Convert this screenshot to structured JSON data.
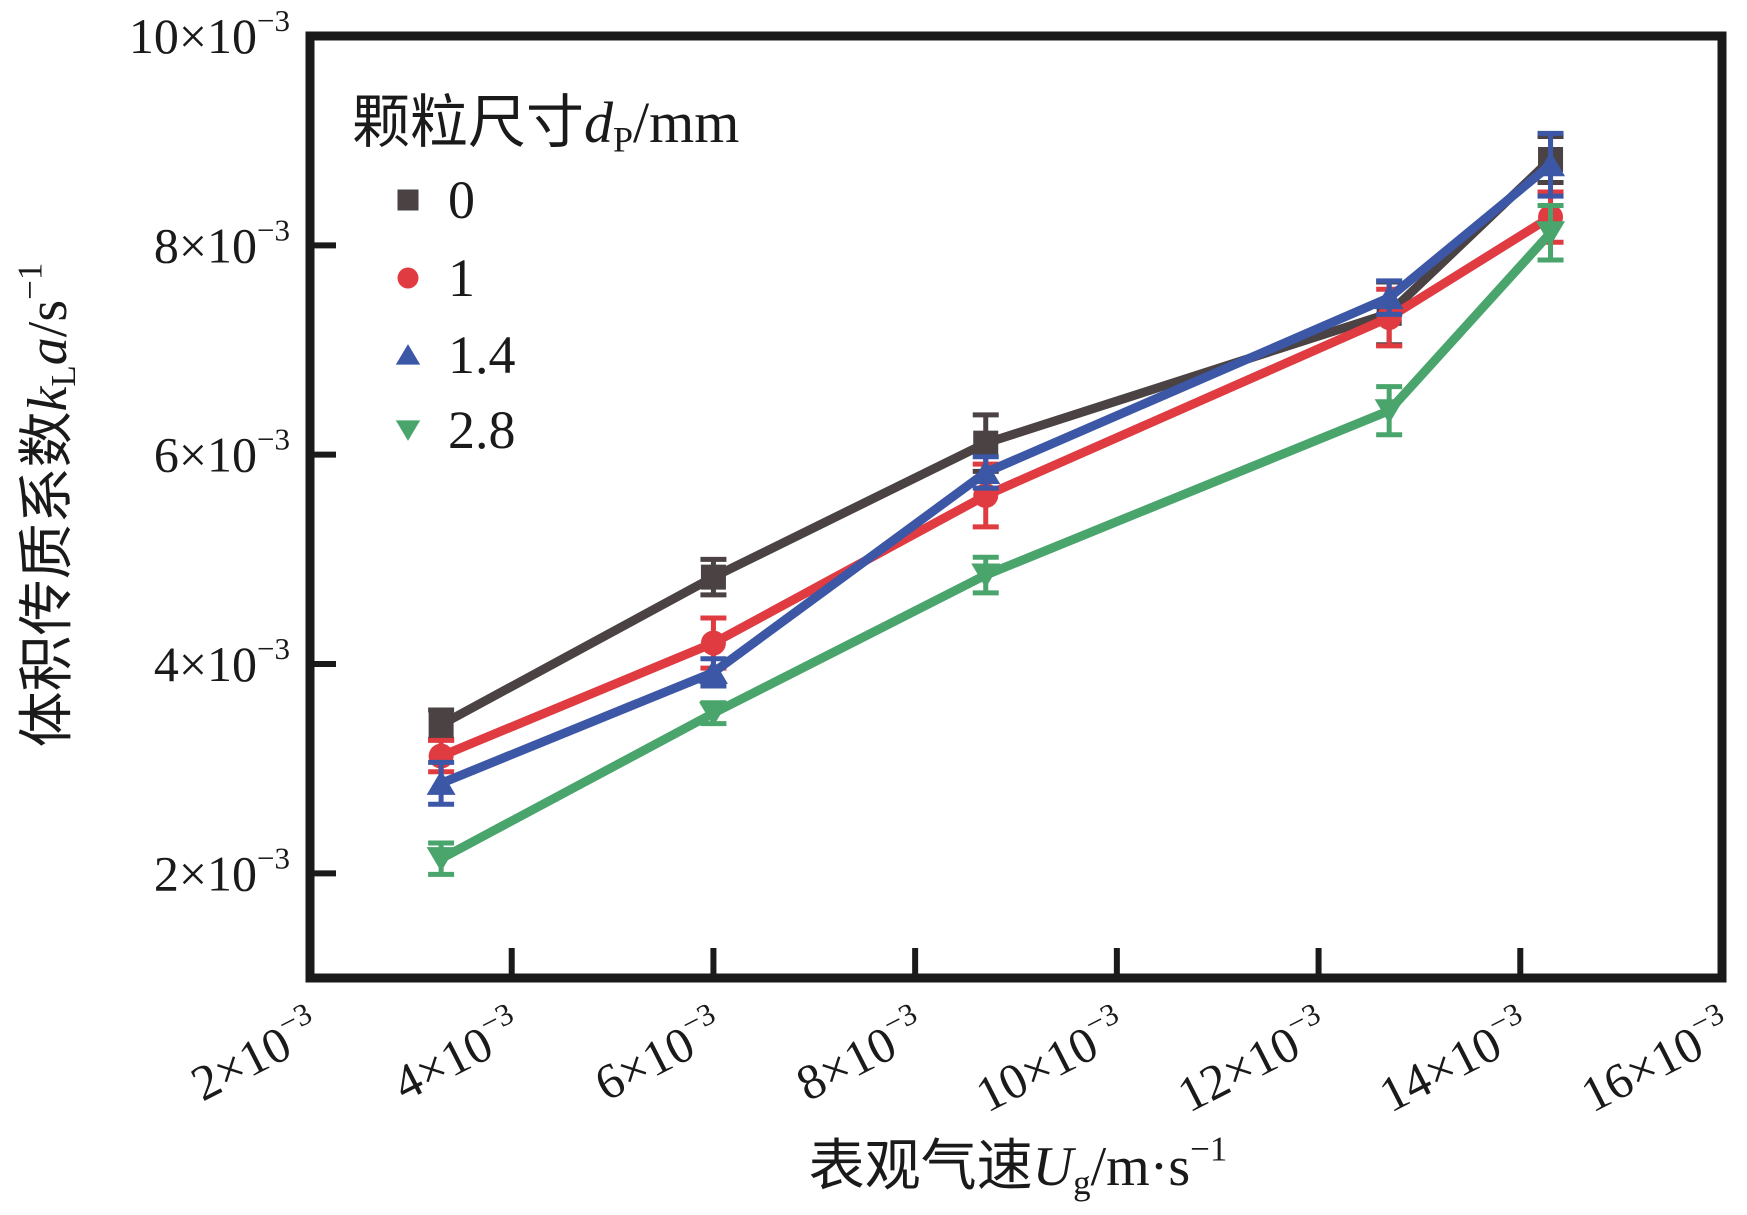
{
  "figure": {
    "background": "#ffffff",
    "axis_color": "#1a1a1a",
    "text_color": "#1a1a1a"
  },
  "chart_data": {
    "type": "line",
    "unit_note": "all axis and data values are in units of 10^-3",
    "x_axis": {
      "label_parts": [
        {
          "t": "表观气速"
        },
        {
          "t": "U",
          "italic": true
        },
        {
          "t": "g",
          "script": "sub"
        },
        {
          "t": "/m·s"
        },
        {
          "t": "−1",
          "script": "sup"
        }
      ],
      "min": 2,
      "max": 16,
      "ticks": [
        2,
        4,
        6,
        8,
        10,
        12,
        14,
        16
      ],
      "tick_base": "×10",
      "tick_exp": "−3"
    },
    "y_axis": {
      "label_parts": [
        {
          "t": "体积传质系数"
        },
        {
          "t": "k",
          "italic": true
        },
        {
          "t": "L",
          "script": "sub"
        },
        {
          "t": "a",
          "italic": true
        },
        {
          "t": "/s"
        },
        {
          "t": "−1",
          "script": "sup"
        }
      ],
      "min": 1,
      "max": 10,
      "ticks": [
        2,
        4,
        6,
        8,
        10
      ],
      "tick_base": "×10",
      "tick_exp": "−3"
    },
    "legend": {
      "title_parts": [
        {
          "t": "颗粒尺寸"
        },
        {
          "t": "d",
          "italic": true
        },
        {
          "t": "P",
          "script": "sub"
        },
        {
          "t": "/mm"
        }
      ]
    },
    "x": [
      3.3,
      6.0,
      8.7,
      12.7,
      14.3
    ],
    "series": [
      {
        "name": "0",
        "marker": "square",
        "color": "#4a4243",
        "values": [
          3.42,
          4.83,
          6.11,
          7.35,
          8.82
        ],
        "errors": [
          0.14,
          0.17,
          0.27,
          0.3,
          0.22
        ]
      },
      {
        "name": "1",
        "marker": "circle",
        "color": "#df3b41",
        "values": [
          3.12,
          4.2,
          5.61,
          7.31,
          8.27
        ],
        "errors": [
          0.15,
          0.24,
          0.3,
          0.27,
          0.24
        ]
      },
      {
        "name": "1.4",
        "marker": "triangle-up",
        "color": "#3c57a6",
        "values": [
          2.86,
          3.92,
          5.83,
          7.5,
          8.77
        ],
        "errors": [
          0.2,
          0.13,
          0.15,
          0.16,
          0.3
        ]
      },
      {
        "name": "2.8",
        "marker": "triangle-down",
        "color": "#4aa56c",
        "values": [
          2.14,
          3.53,
          4.85,
          6.42,
          8.12
        ],
        "errors": [
          0.15,
          0.1,
          0.17,
          0.23,
          0.26
        ]
      }
    ]
  }
}
